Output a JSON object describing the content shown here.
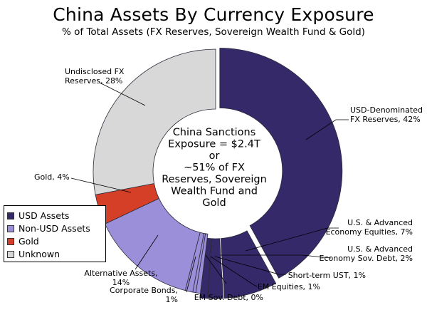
{
  "chart_data": {
    "type": "pie",
    "title": "China Assets By Currency Exposure",
    "subtitle": "% of Total Assets (FX Reserves, Sovereign Wealth Fund & Gold)",
    "center_text": [
      "China Sanctions",
      "Exposure = $2.4T",
      "or",
      "~51% of FX",
      "Reserves, Sovereign",
      "Wealth Fund and",
      "Gold"
    ],
    "slices": [
      {
        "lines": [
          "USD-Denominated",
          "FX Reserves, 42%"
        ],
        "value": 42,
        "group": "usd"
      },
      {
        "lines": [
          "U.S. & Advanced",
          "Economy Equities, 7%"
        ],
        "value": 7,
        "group": "usd"
      },
      {
        "lines": [
          "U.S. & Advanced",
          "Economy Sov. Debt, 2%"
        ],
        "value": 2,
        "group": "usd"
      },
      {
        "lines": [
          "Short-term UST, 1%"
        ],
        "value": 1,
        "group": "usd"
      },
      {
        "lines": [
          "EM Equities, 1%"
        ],
        "value": 0.6,
        "group": "nonusd"
      },
      {
        "lines": [
          "EM Sov. Debt, 0%"
        ],
        "value": 0.4,
        "group": "nonusd"
      },
      {
        "lines": [
          "Corporate Bonds,",
          "1%"
        ],
        "value": 1,
        "group": "nonusd"
      },
      {
        "lines": [
          "Alternative Assets,",
          "14%"
        ],
        "value": 14,
        "group": "nonusd"
      },
      {
        "lines": [
          "Gold, 4%"
        ],
        "value": 4,
        "group": "gold"
      },
      {
        "lines": [
          "Undisclosed FX",
          "Reserves, 28%"
        ],
        "value": 28,
        "group": "unknown"
      }
    ],
    "legend": [
      {
        "label": "USD Assets",
        "group": "usd"
      },
      {
        "label": "Non-USD Assets",
        "group": "nonusd"
      },
      {
        "label": "Gold",
        "group": "gold"
      },
      {
        "label": "Unknown",
        "group": "unknown"
      }
    ],
    "colors": {
      "usd": "#35296a",
      "nonusd": "#9a8fd8",
      "gold": "#d63f27",
      "unknown": "#d8d8d8"
    },
    "legend_position": "bottom-left"
  }
}
